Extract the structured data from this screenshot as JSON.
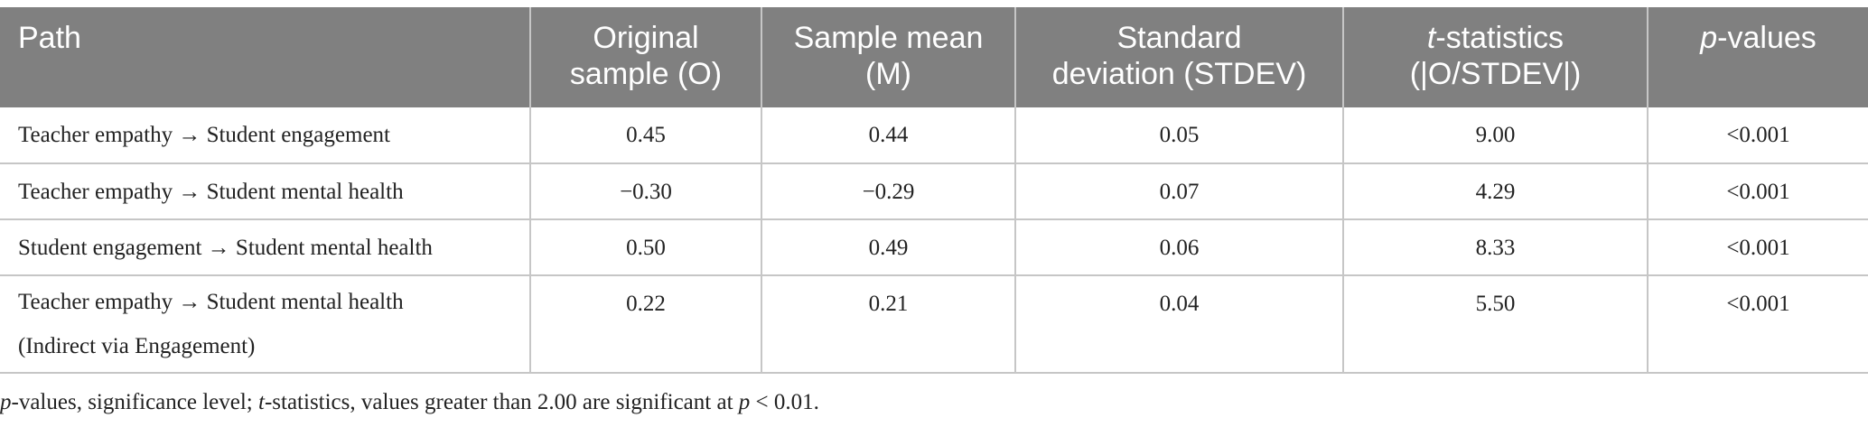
{
  "table": {
    "headers": [
      {
        "lines": [
          "Path"
        ]
      },
      {
        "lines": [
          "Original",
          "sample (O)"
        ]
      },
      {
        "lines": [
          "Sample mean",
          "(M)"
        ]
      },
      {
        "lines": [
          "Standard",
          "deviation (STDEV)"
        ]
      },
      {
        "prefix_italic": "t",
        "lines": [
          "-statistics",
          "(|O/STDEV|)"
        ]
      },
      {
        "prefix_italic": "p",
        "lines": [
          "-values"
        ]
      }
    ],
    "rows": [
      {
        "path_lines": [
          "Teacher empathy → Student engagement"
        ],
        "original": "0.45",
        "mean": "0.44",
        "stdev": "0.05",
        "t": "9.00",
        "p": "<0.001"
      },
      {
        "path_lines": [
          "Teacher empathy → Student mental health"
        ],
        "original": "−0.30",
        "mean": "−0.29",
        "stdev": "0.07",
        "t": "4.29",
        "p": "<0.001"
      },
      {
        "path_lines": [
          "Student engagement → Student mental health"
        ],
        "original": "0.50",
        "mean": "0.49",
        "stdev": "0.06",
        "t": "8.33",
        "p": "<0.001"
      },
      {
        "path_lines": [
          "Teacher empathy → Student mental health",
          "(Indirect via Engagement)"
        ],
        "original": "0.22",
        "mean": "0.21",
        "stdev": "0.04",
        "t": "5.50",
        "p": "<0.001"
      }
    ]
  },
  "footnote": {
    "p_italic": "p",
    "part1": "-values, significance level; ",
    "t_italic": "t",
    "part2": "-statistics, values greater than 2.00 are significant at ",
    "p2_italic": "p",
    "part3": " < 0.01."
  },
  "colors": {
    "header_bg": "#808080",
    "header_text": "#ffffff",
    "grid": "#c6c6c6",
    "body_text": "#222222"
  }
}
